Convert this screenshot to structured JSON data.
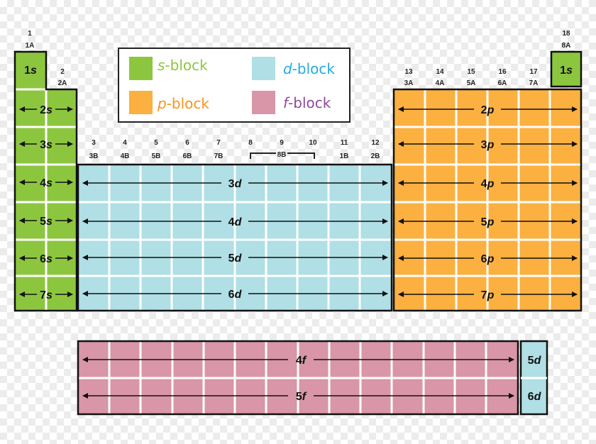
{
  "legend": {
    "s": {
      "label": "s",
      "suffix": "-block",
      "color": "#8cc63f"
    },
    "p": {
      "label": "p",
      "suffix": "-block",
      "color": "#fbb040"
    },
    "d": {
      "label": "d",
      "suffix": "-block",
      "color": "#b0dfe5"
    },
    "f": {
      "label": "f",
      "suffix": "-block",
      "color": "#d896a8"
    }
  },
  "legend_text_colors": {
    "s": "#8cc63f",
    "p": "#f7941d",
    "d": "#27aae1",
    "f": "#8e4a9e"
  },
  "groups": {
    "g1": {
      "num": "1",
      "alt": "1A"
    },
    "g2": {
      "num": "2",
      "alt": "2A"
    },
    "g3": {
      "num": "3",
      "alt": "3B"
    },
    "g4": {
      "num": "4",
      "alt": "4B"
    },
    "g5": {
      "num": "5",
      "alt": "5B"
    },
    "g6": {
      "num": "6",
      "alt": "6B"
    },
    "g7": {
      "num": "7",
      "alt": "7B"
    },
    "g8": {
      "num": "8"
    },
    "g9": {
      "num": "9",
      "alt": "8B"
    },
    "g10": {
      "num": "10"
    },
    "g11": {
      "num": "11",
      "alt": "1B"
    },
    "g12": {
      "num": "12",
      "alt": "2B"
    },
    "g13": {
      "num": "13",
      "alt": "3A"
    },
    "g14": {
      "num": "14",
      "alt": "4A"
    },
    "g15": {
      "num": "15",
      "alt": "5A"
    },
    "g16": {
      "num": "16",
      "alt": "6A"
    },
    "g17": {
      "num": "17",
      "alt": "7A"
    },
    "g18": {
      "num": "18",
      "alt": "8A"
    }
  },
  "sublevels": {
    "s1a": {
      "n": "1",
      "l": "s"
    },
    "s1b": {
      "n": "1",
      "l": "s"
    },
    "s2": {
      "n": "2",
      "l": "s"
    },
    "s3": {
      "n": "3",
      "l": "s"
    },
    "s4": {
      "n": "4",
      "l": "s"
    },
    "s5": {
      "n": "5",
      "l": "s"
    },
    "s6": {
      "n": "6",
      "l": "s"
    },
    "s7": {
      "n": "7",
      "l": "s"
    },
    "d3": {
      "n": "3",
      "l": "d"
    },
    "d4": {
      "n": "4",
      "l": "d"
    },
    "d5": {
      "n": "5",
      "l": "d"
    },
    "d6": {
      "n": "6",
      "l": "d"
    },
    "p2": {
      "n": "2",
      "l": "p"
    },
    "p3": {
      "n": "3",
      "l": "p"
    },
    "p4": {
      "n": "4",
      "l": "p"
    },
    "p5": {
      "n": "5",
      "l": "p"
    },
    "p6": {
      "n": "6",
      "l": "p"
    },
    "p7": {
      "n": "7",
      "l": "p"
    },
    "f4": {
      "n": "4",
      "l": "f"
    },
    "f5": {
      "n": "5",
      "l": "f"
    },
    "d5b": {
      "n": "5",
      "l": "d"
    },
    "d6b": {
      "n": "6",
      "l": "d"
    }
  }
}
